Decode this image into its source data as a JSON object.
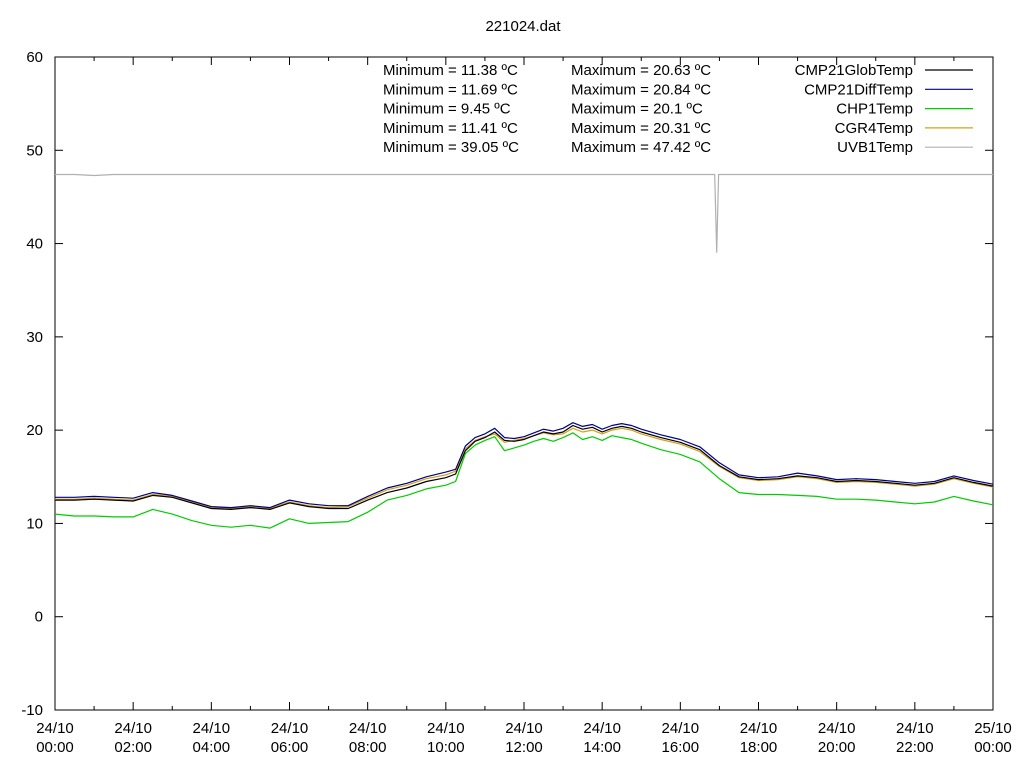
{
  "chart_data": {
    "type": "line",
    "title": "221024.dat",
    "xlabel": "",
    "ylabel": "",
    "x_range_hours": [
      0,
      24
    ],
    "ylim": [
      -10,
      60
    ],
    "y_ticks": [
      -10,
      0,
      10,
      20,
      30,
      40,
      50,
      60
    ],
    "x_ticks": [
      {
        "h": 0,
        "date": "24/10",
        "time": "00:00"
      },
      {
        "h": 2,
        "date": "24/10",
        "time": "02:00"
      },
      {
        "h": 4,
        "date": "24/10",
        "time": "04:00"
      },
      {
        "h": 6,
        "date": "24/10",
        "time": "06:00"
      },
      {
        "h": 8,
        "date": "24/10",
        "time": "08:00"
      },
      {
        "h": 10,
        "date": "24/10",
        "time": "10:00"
      },
      {
        "h": 12,
        "date": "24/10",
        "time": "12:00"
      },
      {
        "h": 14,
        "date": "24/10",
        "time": "14:00"
      },
      {
        "h": 16,
        "date": "24/10",
        "time": "16:00"
      },
      {
        "h": 18,
        "date": "24/10",
        "time": "18:00"
      },
      {
        "h": 20,
        "date": "24/10",
        "time": "20:00"
      },
      {
        "h": 22,
        "date": "24/10",
        "time": "22:00"
      },
      {
        "h": 24,
        "date": "25/10",
        "time": "00:00"
      }
    ],
    "grid": false,
    "legend_position": "top-right",
    "stats": [
      {
        "min": "Minimum = 11.38 ºC",
        "max": "Maximum = 20.63 ºC"
      },
      {
        "min": "Minimum = 11.69 ºC",
        "max": "Maximum = 20.84 ºC"
      },
      {
        "min": "Minimum = 9.45 ºC",
        "max": "Maximum = 20.1 ºC"
      },
      {
        "min": "Minimum = 11.41 ºC",
        "max": "Maximum = 20.31 ºC"
      },
      {
        "min": "Minimum = 39.05 ºC",
        "max": "Maximum = 47.42 ºC"
      }
    ],
    "x_hours": [
      0,
      0.5,
      1,
      1.5,
      2,
      2.5,
      3,
      3.5,
      4,
      4.5,
      5,
      5.5,
      6,
      6.5,
      7,
      7.5,
      8,
      8.5,
      9,
      9.5,
      10,
      10.25,
      10.5,
      10.75,
      11,
      11.25,
      11.5,
      11.75,
      12,
      12.25,
      12.5,
      12.75,
      13,
      13.25,
      13.5,
      13.75,
      14,
      14.25,
      14.5,
      14.75,
      15,
      15.5,
      16,
      16.5,
      17,
      17.5,
      18,
      18.5,
      19,
      19.5,
      20,
      20.5,
      21,
      21.5,
      22,
      22.5,
      23,
      23.5,
      24
    ],
    "series": [
      {
        "name": "CMP21GlobTemp",
        "color": "#000000",
        "values": [
          12.5,
          12.5,
          12.6,
          12.5,
          12.4,
          13.0,
          12.8,
          12.2,
          11.6,
          11.5,
          11.7,
          11.5,
          12.2,
          11.8,
          11.6,
          11.6,
          12.5,
          13.3,
          13.8,
          14.5,
          14.9,
          15.3,
          17.8,
          18.8,
          19.2,
          19.8,
          18.9,
          18.8,
          19.0,
          19.4,
          19.8,
          19.6,
          19.8,
          20.5,
          20.1,
          20.3,
          19.8,
          20.2,
          20.4,
          20.2,
          19.8,
          19.2,
          18.7,
          17.9,
          16.2,
          15.0,
          14.7,
          14.8,
          15.1,
          14.9,
          14.5,
          14.6,
          14.5,
          14.3,
          14.1,
          14.3,
          14.9,
          14.4,
          14.0
        ]
      },
      {
        "name": "CMP21DiffTemp",
        "color": "#00008b",
        "values": [
          12.8,
          12.8,
          12.9,
          12.8,
          12.7,
          13.3,
          13.0,
          12.4,
          11.8,
          11.7,
          11.9,
          11.7,
          12.5,
          12.1,
          11.9,
          11.9,
          12.9,
          13.8,
          14.3,
          15.0,
          15.5,
          15.8,
          18.3,
          19.2,
          19.6,
          20.2,
          19.2,
          19.1,
          19.3,
          19.7,
          20.1,
          19.9,
          20.2,
          20.8,
          20.4,
          20.6,
          20.1,
          20.5,
          20.7,
          20.5,
          20.1,
          19.5,
          19.0,
          18.2,
          16.5,
          15.2,
          14.9,
          15.0,
          15.4,
          15.1,
          14.7,
          14.8,
          14.7,
          14.5,
          14.3,
          14.5,
          15.1,
          14.6,
          14.2
        ]
      },
      {
        "name": "CHP1Temp",
        "color": "#00cc00",
        "values": [
          11.0,
          10.8,
          10.8,
          10.7,
          10.7,
          11.5,
          11.0,
          10.3,
          9.8,
          9.6,
          9.8,
          9.5,
          10.5,
          10.0,
          10.1,
          10.2,
          11.2,
          12.5,
          13.0,
          13.7,
          14.1,
          14.5,
          17.5,
          18.4,
          18.9,
          19.3,
          17.8,
          18.1,
          18.4,
          18.8,
          19.1,
          18.8,
          19.2,
          19.7,
          19.0,
          19.3,
          18.9,
          19.4,
          19.2,
          19.0,
          18.6,
          17.9,
          17.4,
          16.6,
          14.8,
          13.3,
          13.1,
          13.1,
          13.0,
          12.9,
          12.6,
          12.6,
          12.5,
          12.3,
          12.1,
          12.3,
          12.9,
          12.4,
          12.0
        ]
      },
      {
        "name": "CGR4Temp",
        "color": "#d4a017",
        "values": [
          12.6,
          12.6,
          12.7,
          12.6,
          12.5,
          13.1,
          12.9,
          12.3,
          11.7,
          11.6,
          11.8,
          11.6,
          12.3,
          11.9,
          11.7,
          11.8,
          12.7,
          13.6,
          14.1,
          14.8,
          15.2,
          15.6,
          18.0,
          18.9,
          19.3,
          19.6,
          18.7,
          18.9,
          19.1,
          19.4,
          19.7,
          19.5,
          19.6,
          20.2,
          19.8,
          20.0,
          19.6,
          20.0,
          20.2,
          20.0,
          19.6,
          19.0,
          18.5,
          17.7,
          16.1,
          14.9,
          14.6,
          14.7,
          15.0,
          14.8,
          14.4,
          14.5,
          14.4,
          14.2,
          14.0,
          14.2,
          14.8,
          14.3,
          13.9
        ]
      },
      {
        "name": "UVB1Temp",
        "color": "#b0b0b0",
        "values": [
          47.4,
          47.4,
          47.3,
          47.4,
          47.4,
          47.4,
          47.4,
          47.4,
          47.4,
          47.4,
          47.4,
          47.4,
          47.4,
          47.4,
          47.4,
          47.4,
          47.4,
          47.4,
          47.4,
          47.4,
          47.4,
          47.4,
          47.4,
          47.4,
          47.4,
          47.4,
          47.4,
          47.4,
          47.4,
          47.4,
          47.4,
          47.4,
          47.4,
          47.4,
          47.4,
          47.4,
          47.4,
          47.4,
          47.4,
          47.4,
          47.4,
          47.4,
          47.4,
          47.4,
          47.4,
          47.4,
          47.4,
          47.4,
          47.4,
          47.4,
          47.4,
          47.4,
          47.4,
          47.4,
          47.4,
          47.4,
          47.4,
          47.4,
          47.4
        ],
        "dip": {
          "x_hours": 16.93,
          "value": 39.05
        }
      }
    ]
  }
}
